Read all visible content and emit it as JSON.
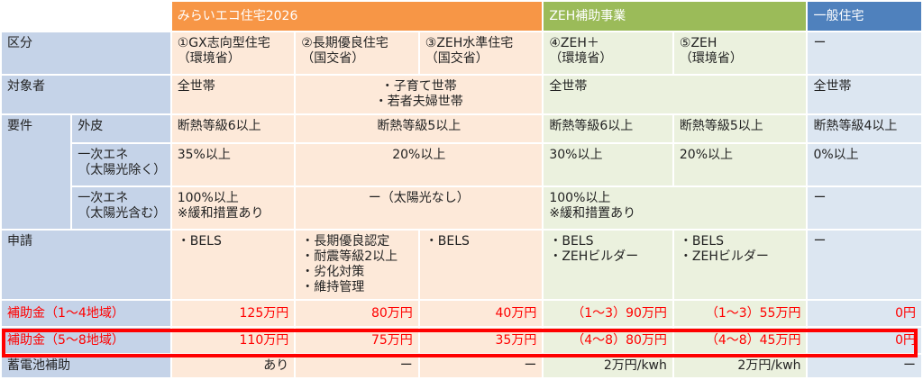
{
  "headers": {
    "mirai": "みらいエコ住宅2026",
    "zeh": "ZEH補助事業",
    "general": "一般住宅"
  },
  "row_kubun": {
    "label": "区分",
    "c1": "①GX志向型住宅",
    "c1_sub": "（環境省）",
    "c2": "②長期優良住宅",
    "c2_sub": "（国交省）",
    "c3": "③ZEH水準住宅",
    "c3_sub": "（国交省）",
    "c4": "④ZEH＋",
    "c4_sub": "（環境省）",
    "c5": "⑤ZEH",
    "c5_sub": "（環境省）",
    "c6": "ー"
  },
  "row_taisho": {
    "label": "対象者",
    "c1": "全世帯",
    "c23_line1": "・子育て世帯",
    "c23_line2": "・若者夫婦世帯",
    "c45": "全世帯",
    "c6": "全世帯"
  },
  "row_gaihi": {
    "label": "要件",
    "sub": "外皮",
    "c1": "断熱等級6以上",
    "c23": "断熱等級5以上",
    "c4": "断熱等級6以上",
    "c5": "断熱等級5以上",
    "c6": "断熱等級4以上"
  },
  "row_ichiji1": {
    "sub_line1": "一次エネ",
    "sub_line2": "（太陽光除く）",
    "c1": "35%以上",
    "c23": "20%以上",
    "c4": "30%以上",
    "c5": "20%以上",
    "c6": "0%以上"
  },
  "row_ichiji2": {
    "sub_line1": "一次エネ",
    "sub_line2": "（太陽光含む）",
    "c1_line1": "100%以上",
    "c1_line2": "※緩和措置あり",
    "c23": "ー（太陽光なし）",
    "c45_line1": "100%以上",
    "c45_line2": "※緩和措置あり",
    "c6": "ー"
  },
  "row_shinsei": {
    "label": "申請",
    "c1": "・BELS",
    "c2_line1": "・長期優良認定",
    "c2_line2": "・耐震等級2以上",
    "c2_line3": "・劣化対策",
    "c2_line4": "・維持管理",
    "c3": "・BELS",
    "c4_line1": "・BELS",
    "c4_line2": "・ZEHビルダー",
    "c5_line1": "・BELS",
    "c5_line2": "・ZEHビルダー",
    "c6": "ー"
  },
  "row_hojo14": {
    "label": "補助金（1～4地域）",
    "c1": "125万円",
    "c2": "80万円",
    "c3": "40万円",
    "c4": "（1～3）90万円",
    "c5": "（1～3）55万円",
    "c6": "0円"
  },
  "row_hojo58": {
    "label": "補助金（5～8地域）",
    "c1": "110万円",
    "c2": "75万円",
    "c3": "35万円",
    "c4": "（4～8）80万円",
    "c5": "（4～8）45万円",
    "c6": "0円"
  },
  "row_chikuden": {
    "label": "蓄電池補助",
    "c1": "あり",
    "c2": "ー",
    "c3": "ー",
    "c4": "2万円/kwh",
    "c5": "2万円/kwh",
    "c6": "ー"
  },
  "colors": {
    "mirai_header": "#f79646",
    "zeh_header": "#9bbb59",
    "general_header": "#4f81bd",
    "label_bg": "#c5d3e8",
    "mirai_cell": "#fde9d9",
    "zeh_cell": "#ebf1de",
    "general_cell": "#dce6f1",
    "highlight": "#ff0000"
  }
}
